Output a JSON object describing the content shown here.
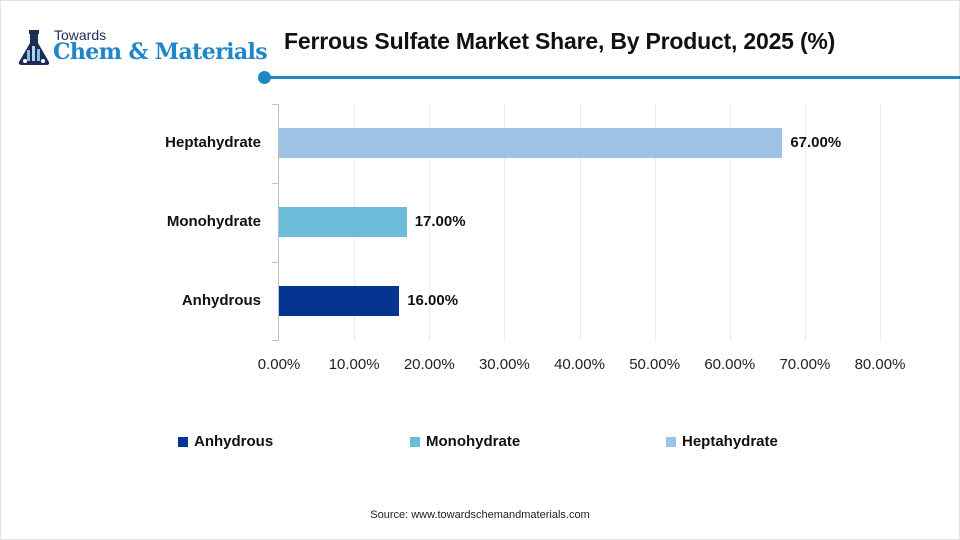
{
  "brand": {
    "line1": "Towards",
    "line2": "Chem & Materials",
    "accent": "#1f86c8",
    "dark": "#1d2b55"
  },
  "title": "Ferrous Sulfate Market Share, By Product, 2025 (%)",
  "source": "Source: www.towardschemandmaterials.com",
  "chart_data": {
    "type": "bar",
    "orientation": "horizontal",
    "title": "Ferrous Sulfate Market Share, By Product, 2025 (%)",
    "categories": [
      "Heptahydrate",
      "Monohydrate",
      "Anhydrous"
    ],
    "values": [
      67.0,
      17.0,
      16.0
    ],
    "value_labels": [
      "67.00%",
      "17.00%",
      "16.00%"
    ],
    "colors": [
      "#9dc3e6",
      "#6bbcd8",
      "#063591"
    ],
    "xlabel": "",
    "ylabel": "",
    "xlim": [
      0,
      80
    ],
    "x_ticks": [
      "0.00%",
      "10.00%",
      "20.00%",
      "30.00%",
      "40.00%",
      "50.00%",
      "60.00%",
      "70.00%",
      "80.00%"
    ],
    "grid": "vertical",
    "legend": {
      "position": "bottom",
      "entries": [
        {
          "label": "Anhydrous",
          "color": "#063591"
        },
        {
          "label": "Monohydrate",
          "color": "#6bbcd8"
        },
        {
          "label": "Heptahydrate",
          "color": "#9dc3e6"
        }
      ]
    }
  }
}
